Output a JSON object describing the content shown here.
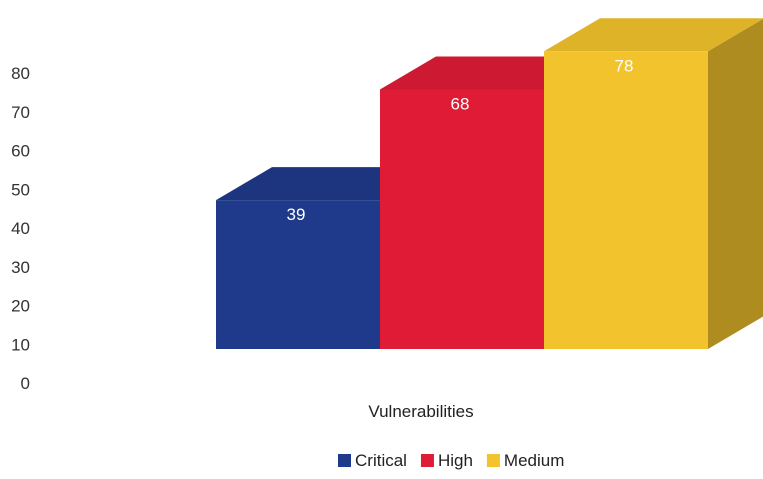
{
  "chart_data": {
    "type": "bar",
    "style": "3d-column",
    "categories": [
      "Vulnerabilities"
    ],
    "series": [
      {
        "name": "Critical",
        "values": [
          39
        ],
        "color": "#1f3a8a"
      },
      {
        "name": "High",
        "values": [
          68
        ],
        "color": "#e01b36"
      },
      {
        "name": "Medium",
        "values": [
          78
        ],
        "color": "#f2c32c"
      }
    ],
    "xlabel": "Vulnerabilities",
    "ylabel": "",
    "ylim": [
      0,
      80
    ],
    "yticks": [
      "0",
      "10",
      "20",
      "30",
      "40",
      "50",
      "60",
      "70",
      "80"
    ],
    "grid": false,
    "legend_position": "bottom"
  }
}
